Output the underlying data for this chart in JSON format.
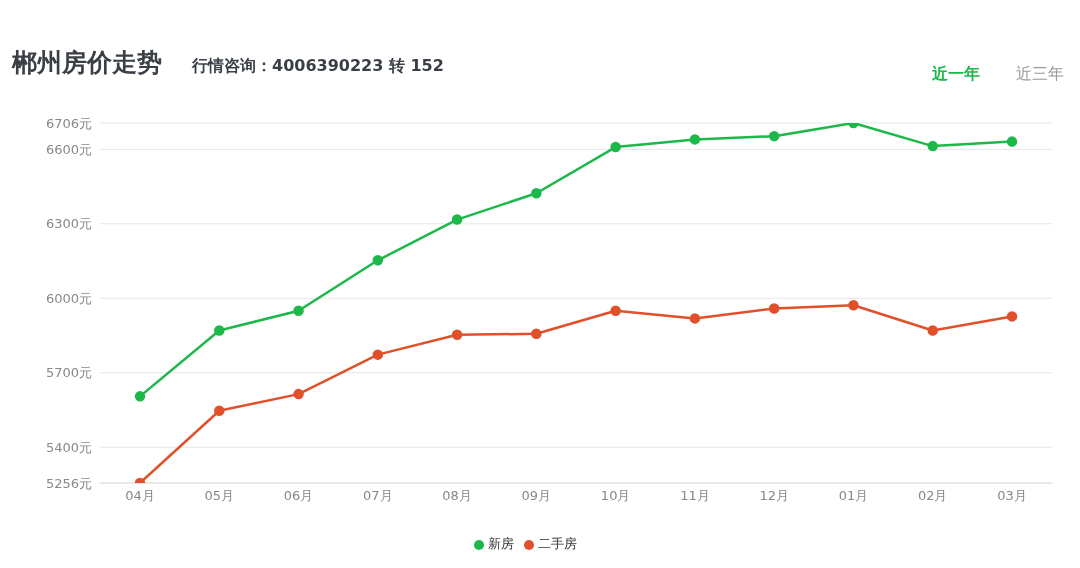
{
  "chart_data": {
    "type": "line",
    "title": "郴州房价走势",
    "subtitle": "行情咨询：4006390223 转 152",
    "annotations": [
      "近一年",
      "近三年"
    ],
    "categories": [
      "04月",
      "05月",
      "06月",
      "07月",
      "08月",
      "09月",
      "10月",
      "11月",
      "12月",
      "01月",
      "02月",
      "03月"
    ],
    "series": [
      {
        "name": "新房",
        "color": "#1db84a",
        "values": [
          5605,
          5870,
          5950,
          6153,
          6317,
          6423,
          6609,
          6640,
          6653,
          6706,
          6613,
          6631
        ]
      },
      {
        "name": "二手房",
        "color": "#e0502a",
        "values": [
          5256,
          5547,
          5614,
          5773,
          5853,
          5857,
          5950,
          5919,
          5959,
          5972,
          5870,
          5927
        ]
      }
    ],
    "ylim": [
      5256,
      6706
    ],
    "yticks": [
      {
        "value": 5256,
        "label": "5256元"
      },
      {
        "value": 5400,
        "label": "5400元"
      },
      {
        "value": 5700,
        "label": "5700元"
      },
      {
        "value": 6000,
        "label": "6000元"
      },
      {
        "value": 6300,
        "label": "6300元"
      },
      {
        "value": 6600,
        "label": "6600元"
      },
      {
        "value": 6706,
        "label": "6706元"
      }
    ],
    "grid": "y",
    "legend": "bottom",
    "marker": "circle",
    "line_style": "solid"
  }
}
